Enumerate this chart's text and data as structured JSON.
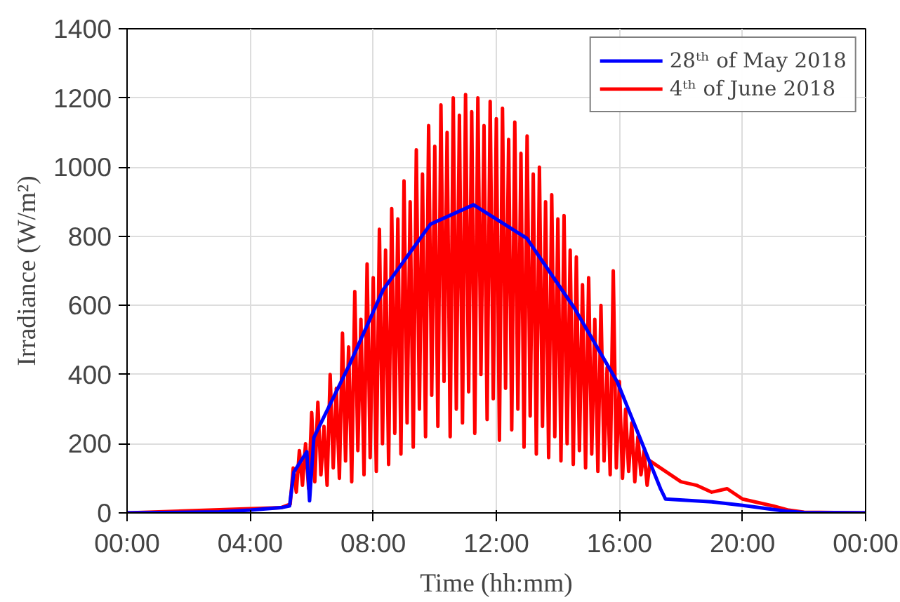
{
  "chart_data": {
    "type": "line",
    "xlabel": "Time (hh:mm)",
    "ylabel": "Irradiance (W/m²)",
    "xlim": [
      0,
      24
    ],
    "xticks": [
      {
        "value": 0,
        "label": "00:00"
      },
      {
        "value": 4,
        "label": "04:00"
      },
      {
        "value": 8,
        "label": "08:00"
      },
      {
        "value": 12,
        "label": "12:00"
      },
      {
        "value": 16,
        "label": "16:00"
      },
      {
        "value": 20,
        "label": "20:00"
      },
      {
        "value": 24,
        "label": "00:00"
      }
    ],
    "ylim": [
      0,
      1400
    ],
    "yticks": [
      0,
      200,
      400,
      600,
      800,
      1000,
      1200,
      1400
    ],
    "grid": true,
    "legend": "top right",
    "line_style": "solid",
    "series": [
      {
        "name": "28ᵗʰ of May 2018",
        "color": "#0000ff",
        "x": [
          0,
          3,
          4,
          5,
          5.28,
          5.42,
          5.84,
          5.93,
          6.07,
          7.24,
          8.32,
          9.86,
          11.26,
          12.99,
          14.53,
          15.93,
          17.34,
          17.5,
          19,
          20,
          21.4,
          22,
          24
        ],
        "values": [
          0,
          3,
          8,
          15,
          20,
          118,
          177,
          35,
          218,
          431,
          645,
          835,
          891,
          794,
          593,
          379,
          69,
          40,
          32,
          22,
          5,
          1,
          0
        ]
      },
      {
        "name": "4ᵗʰ of June 2018",
        "color": "#ff0000",
        "x": [
          0,
          5,
          5.3,
          5.4,
          5.5,
          5.6,
          5.7,
          5.8,
          5.9,
          6.0,
          6.1,
          6.2,
          6.3,
          6.4,
          6.5,
          6.6,
          6.7,
          6.8,
          6.9,
          7.0,
          7.1,
          7.2,
          7.3,
          7.4,
          7.5,
          7.6,
          7.7,
          7.8,
          7.9,
          8.0,
          8.1,
          8.2,
          8.3,
          8.4,
          8.5,
          8.6,
          8.7,
          8.8,
          8.9,
          9.0,
          9.1,
          9.2,
          9.3,
          9.4,
          9.5,
          9.6,
          9.7,
          9.8,
          9.9,
          10.0,
          10.1,
          10.2,
          10.3,
          10.4,
          10.5,
          10.6,
          10.7,
          10.8,
          10.9,
          11.0,
          11.1,
          11.2,
          11.3,
          11.4,
          11.5,
          11.6,
          11.7,
          11.8,
          11.9,
          12.0,
          12.1,
          12.2,
          12.3,
          12.4,
          12.5,
          12.6,
          12.7,
          12.8,
          12.9,
          13.0,
          13.1,
          13.2,
          13.3,
          13.4,
          13.5,
          13.6,
          13.7,
          13.8,
          13.9,
          14.0,
          14.1,
          14.2,
          14.3,
          14.4,
          14.5,
          14.6,
          14.7,
          14.8,
          14.9,
          15.0,
          15.1,
          15.2,
          15.3,
          15.4,
          15.5,
          15.6,
          15.7,
          15.8,
          15.9,
          16.0,
          16.1,
          16.2,
          16.3,
          16.4,
          16.5,
          16.6,
          16.7,
          16.8,
          16.9,
          17.0,
          17.5,
          18,
          18.5,
          19,
          19.5,
          20,
          20.5,
          21,
          21.5,
          22,
          24
        ],
        "values": [
          0,
          15,
          25,
          130,
          60,
          180,
          80,
          200,
          70,
          290,
          90,
          320,
          110,
          250,
          80,
          400,
          130,
          360,
          100,
          520,
          150,
          480,
          90,
          640,
          180,
          560,
          110,
          720,
          160,
          680,
          120,
          820,
          200,
          760,
          140,
          880,
          230,
          850,
          170,
          960,
          260,
          900,
          190,
          1050,
          300,
          980,
          220,
          1120,
          340,
          1060,
          250,
          1180,
          380,
          1100,
          220,
          1200,
          300,
          1150,
          260,
          1210,
          350,
          1160,
          230,
          1200,
          400,
          1120,
          270,
          1190,
          330,
          1140,
          210,
          1170,
          360,
          1080,
          240,
          1130,
          300,
          1040,
          190,
          1090,
          280,
          980,
          170,
          1000,
          250,
          900,
          160,
          920,
          220,
          850,
          150,
          860,
          200,
          760,
          140,
          740,
          180,
          660,
          130,
          680,
          170,
          560,
          120,
          600,
          150,
          420,
          110,
          700,
          130,
          380,
          100,
          300,
          120,
          260,
          90,
          220,
          110,
          180,
          80,
          150,
          120,
          90,
          80,
          60,
          70,
          40,
          30,
          20,
          8,
          2,
          0
        ]
      }
    ]
  }
}
